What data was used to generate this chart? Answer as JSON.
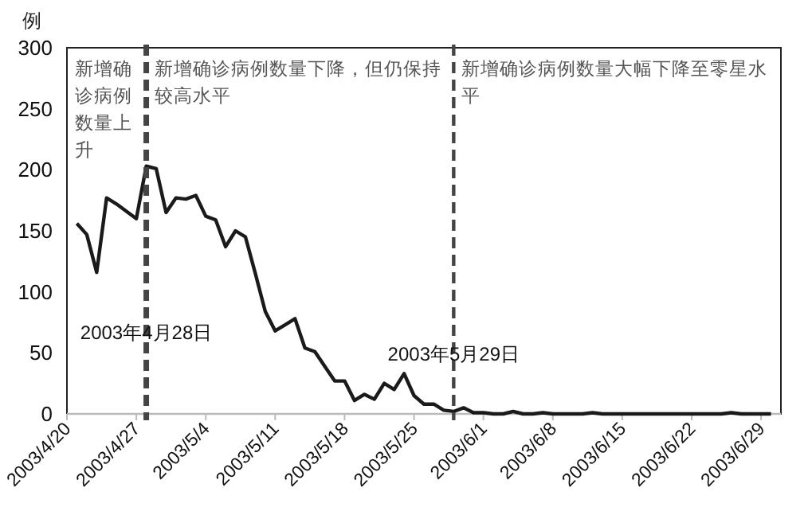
{
  "chart_data": {
    "type": "line",
    "ylabel": "例",
    "x": [
      "2003-04-21",
      "2003-04-22",
      "2003-04-23",
      "2003-04-24",
      "2003-04-25",
      "2003-04-26",
      "2003-04-27",
      "2003-04-28",
      "2003-04-29",
      "2003-04-30",
      "2003-05-01",
      "2003-05-02",
      "2003-05-03",
      "2003-05-04",
      "2003-05-05",
      "2003-05-06",
      "2003-05-07",
      "2003-05-08",
      "2003-05-09",
      "2003-05-10",
      "2003-05-11",
      "2003-05-12",
      "2003-05-13",
      "2003-05-14",
      "2003-05-15",
      "2003-05-16",
      "2003-05-17",
      "2003-05-18",
      "2003-05-19",
      "2003-05-20",
      "2003-05-21",
      "2003-05-22",
      "2003-05-23",
      "2003-05-24",
      "2003-05-25",
      "2003-05-26",
      "2003-05-27",
      "2003-05-28",
      "2003-05-29",
      "2003-05-30",
      "2003-05-31",
      "2003-06-01",
      "2003-06-02",
      "2003-06-03",
      "2003-06-04",
      "2003-06-05",
      "2003-06-06",
      "2003-06-07",
      "2003-06-08",
      "2003-06-09",
      "2003-06-10",
      "2003-06-11",
      "2003-06-12",
      "2003-06-13",
      "2003-06-14",
      "2003-06-15",
      "2003-06-16",
      "2003-06-17",
      "2003-06-18",
      "2003-06-19",
      "2003-06-20",
      "2003-06-21",
      "2003-06-22",
      "2003-06-23",
      "2003-06-24",
      "2003-06-25",
      "2003-06-26",
      "2003-06-27",
      "2003-06-28",
      "2003-06-29",
      "2003-06-30"
    ],
    "series": [
      {
        "color": "#1a1a1a",
        "values": [
          156,
          147,
          116,
          177,
          172,
          166,
          160,
          203,
          201,
          165,
          177,
          176,
          179,
          162,
          159,
          137,
          150,
          145,
          115,
          84,
          68,
          73,
          78,
          54,
          51,
          39,
          27,
          27,
          11,
          16,
          12,
          25,
          20,
          33,
          15,
          8,
          8,
          3,
          2,
          5,
          1,
          1,
          0,
          0,
          2,
          0,
          0,
          1,
          0,
          0,
          0,
          0,
          1,
          0,
          0,
          0,
          0,
          0,
          0,
          0,
          0,
          0,
          0,
          0,
          0,
          0,
          1,
          0,
          0,
          0,
          0
        ]
      }
    ],
    "xlim": [
      "2003-04-20",
      "2003-07-01"
    ],
    "xticks": [
      {
        "value": "2003-04-20",
        "label": "2003/4/20"
      },
      {
        "value": "2003-04-27",
        "label": "2003/4/27"
      },
      {
        "value": "2003-05-04",
        "label": "2003/5/4"
      },
      {
        "value": "2003-05-11",
        "label": "2003/5/11"
      },
      {
        "value": "2003-05-18",
        "label": "2003/5/18"
      },
      {
        "value": "2003-05-25",
        "label": "2003/5/25"
      },
      {
        "value": "2003-06-01",
        "label": "2003/6/1"
      },
      {
        "value": "2003-06-08",
        "label": "2003/6/8"
      },
      {
        "value": "2003-06-15",
        "label": "2003/6/15"
      },
      {
        "value": "2003-06-22",
        "label": "2003/6/22"
      },
      {
        "value": "2003-06-29",
        "label": "2003/6/29"
      }
    ],
    "ylim": [
      0,
      300
    ],
    "yticks": [
      0,
      50,
      100,
      150,
      200,
      250,
      300
    ],
    "ref_lines": [
      {
        "axis": "x",
        "value": "2003-04-28",
        "label": "2003年4月28日",
        "color": "#444444",
        "line_style": "dashed"
      },
      {
        "axis": "x",
        "value": "2003-05-29",
        "label": "2003年5月29日",
        "color": "#444444",
        "line_style": "dashed"
      }
    ],
    "annotations": [
      "新增确诊病例数量上升",
      "新增确诊病例数量下降，但仍保持较高水平",
      "新增确诊病例数量大幅下降至零星水平"
    ],
    "grid": false,
    "marker": "none",
    "line_style": "solid"
  }
}
